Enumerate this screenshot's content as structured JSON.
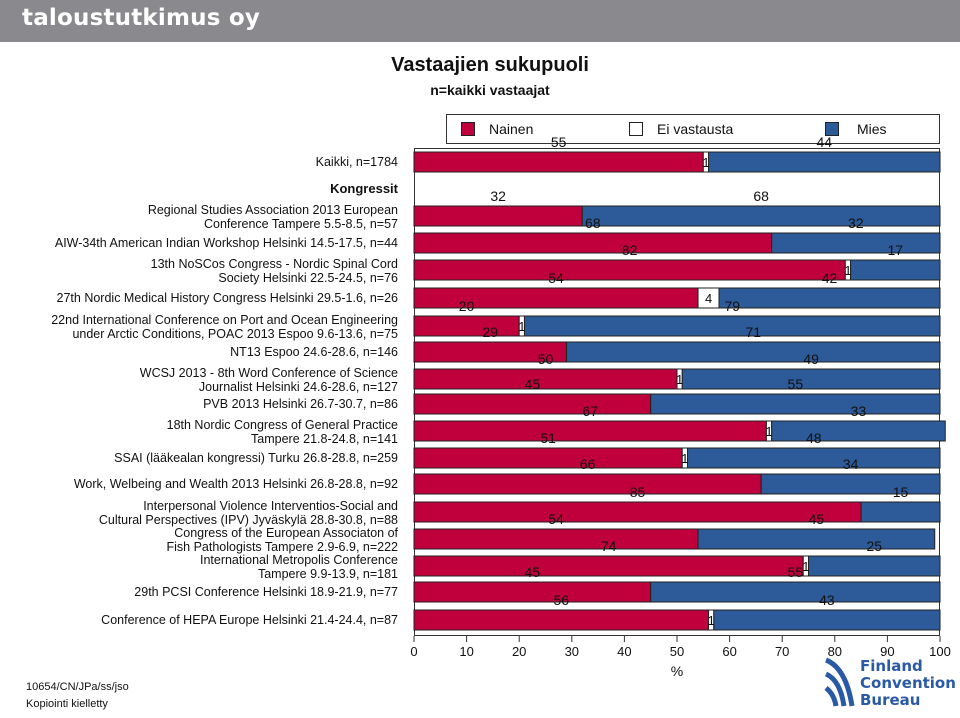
{
  "header": {
    "brand": "taloustutkimus oy"
  },
  "chart_data": {
    "type": "bar",
    "stacked": true,
    "orientation": "horizontal",
    "title": "Vastaajien sukupuoli",
    "subtitle": "n=kaikki vastaajat",
    "xlabel": "%",
    "xlim": [
      0,
      100
    ],
    "xticks": [
      "0",
      "10",
      "20",
      "30",
      "40",
      "50",
      "60",
      "70",
      "80",
      "90",
      "100"
    ],
    "legend": {
      "position": "top",
      "items": [
        "Nainen",
        "Ei vastausta",
        "Mies"
      ]
    },
    "colors": {
      "nainen": "#c0003c",
      "ei_vastausta": "#ffffff",
      "mies": "#2d5a98"
    },
    "rows": [
      {
        "label": [
          "Kaikki, n=1784"
        ],
        "nainen": 55,
        "ei": 1,
        "mies": 44
      },
      {
        "label": [
          "Kongressit"
        ],
        "heading": true
      },
      {
        "label": [
          "Regional Studies Association 2013 European",
          "Conference Tampere 5.5-8.5, n=57"
        ],
        "nainen": 32,
        "ei": 0,
        "mies": 68
      },
      {
        "label": [
          "AIW-34th American Indian Workshop Helsinki 14.5-17.5, n=44"
        ],
        "nainen": 68,
        "ei": 0,
        "mies": 32
      },
      {
        "label": [
          "13th NoSCos Congress - Nordic Spinal Cord",
          "Society Helsinki 22.5-24.5, n=76"
        ],
        "nainen": 82,
        "ei": 1,
        "mies": 17
      },
      {
        "label": [
          "27th Nordic Medical History Congress Helsinki 29.5-1.6, n=26"
        ],
        "nainen": 54,
        "ei": 4,
        "mies": 42
      },
      {
        "label": [
          "22nd International Conference on Port and Ocean Engineering",
          "under Arctic Conditions, POAC 2013 Espoo 9.6-13.6, n=75"
        ],
        "nainen": 20,
        "ei": 1,
        "mies": 79
      },
      {
        "label": [
          "NT13 Espoo 24.6-28.6, n=146"
        ],
        "nainen": 29,
        "ei": 0,
        "mies": 71
      },
      {
        "label": [
          "WCSJ 2013 - 8th Word Conference of Science",
          "Journalist Helsinki 24.6-28.6, n=127"
        ],
        "nainen": 50,
        "ei": 1,
        "mies": 49
      },
      {
        "label": [
          "PVB 2013 Helsinki 26.7-30.7, n=86"
        ],
        "nainen": 45,
        "ei": 0,
        "mies": 55
      },
      {
        "label": [
          "18th Nordic Congress of General Practice",
          "Tampere 21.8-24.8, n=141"
        ],
        "nainen": 67,
        "ei": 1,
        "mies": 33
      },
      {
        "label": [
          "SSAI (lääkealan kongressi) Turku 26.8-28.8, n=259"
        ],
        "nainen": 51,
        "ei": 1,
        "mies": 48
      },
      {
        "label": [
          "Work, Welbeing and Wealth 2013 Helsinki 26.8-28.8, n=92"
        ],
        "nainen": 66,
        "ei": 0,
        "mies": 34
      },
      {
        "label": [
          "Interpersonal Violence Interventios-Social and",
          "Cultural Perspectives (IPV) Jyväskylä 28.8-30.8, n=88"
        ],
        "nainen": 85,
        "ei": 0,
        "mies": 15
      },
      {
        "label": [
          "Congress of the European Associaton of",
          "Fish Pathologists Tampere 2.9-6.9, n=222"
        ],
        "nainen": 54,
        "ei": 0,
        "mies": 45
      },
      {
        "label": [
          "International Metropolis Conference",
          "Tampere 9.9-13.9, n=181"
        ],
        "nainen": 74,
        "ei": 1,
        "mies": 25
      },
      {
        "label": [
          "29th PCSI Conference Helsinki 18.9-21.9, n=77"
        ],
        "nainen": 45,
        "ei": 0,
        "mies": 55
      },
      {
        "label": [
          "Conference of HEPA Europe Helsinki 21.4-24.4, n=87"
        ],
        "nainen": 56,
        "ei": 1,
        "mies": 43
      }
    ]
  },
  "footer": {
    "code": "10654/CN/JPa/ss/jso",
    "copy": "Kopiointi kielletty"
  },
  "logo": {
    "line1": "Finland",
    "line2": "Convention",
    "line3": "Bureau"
  }
}
